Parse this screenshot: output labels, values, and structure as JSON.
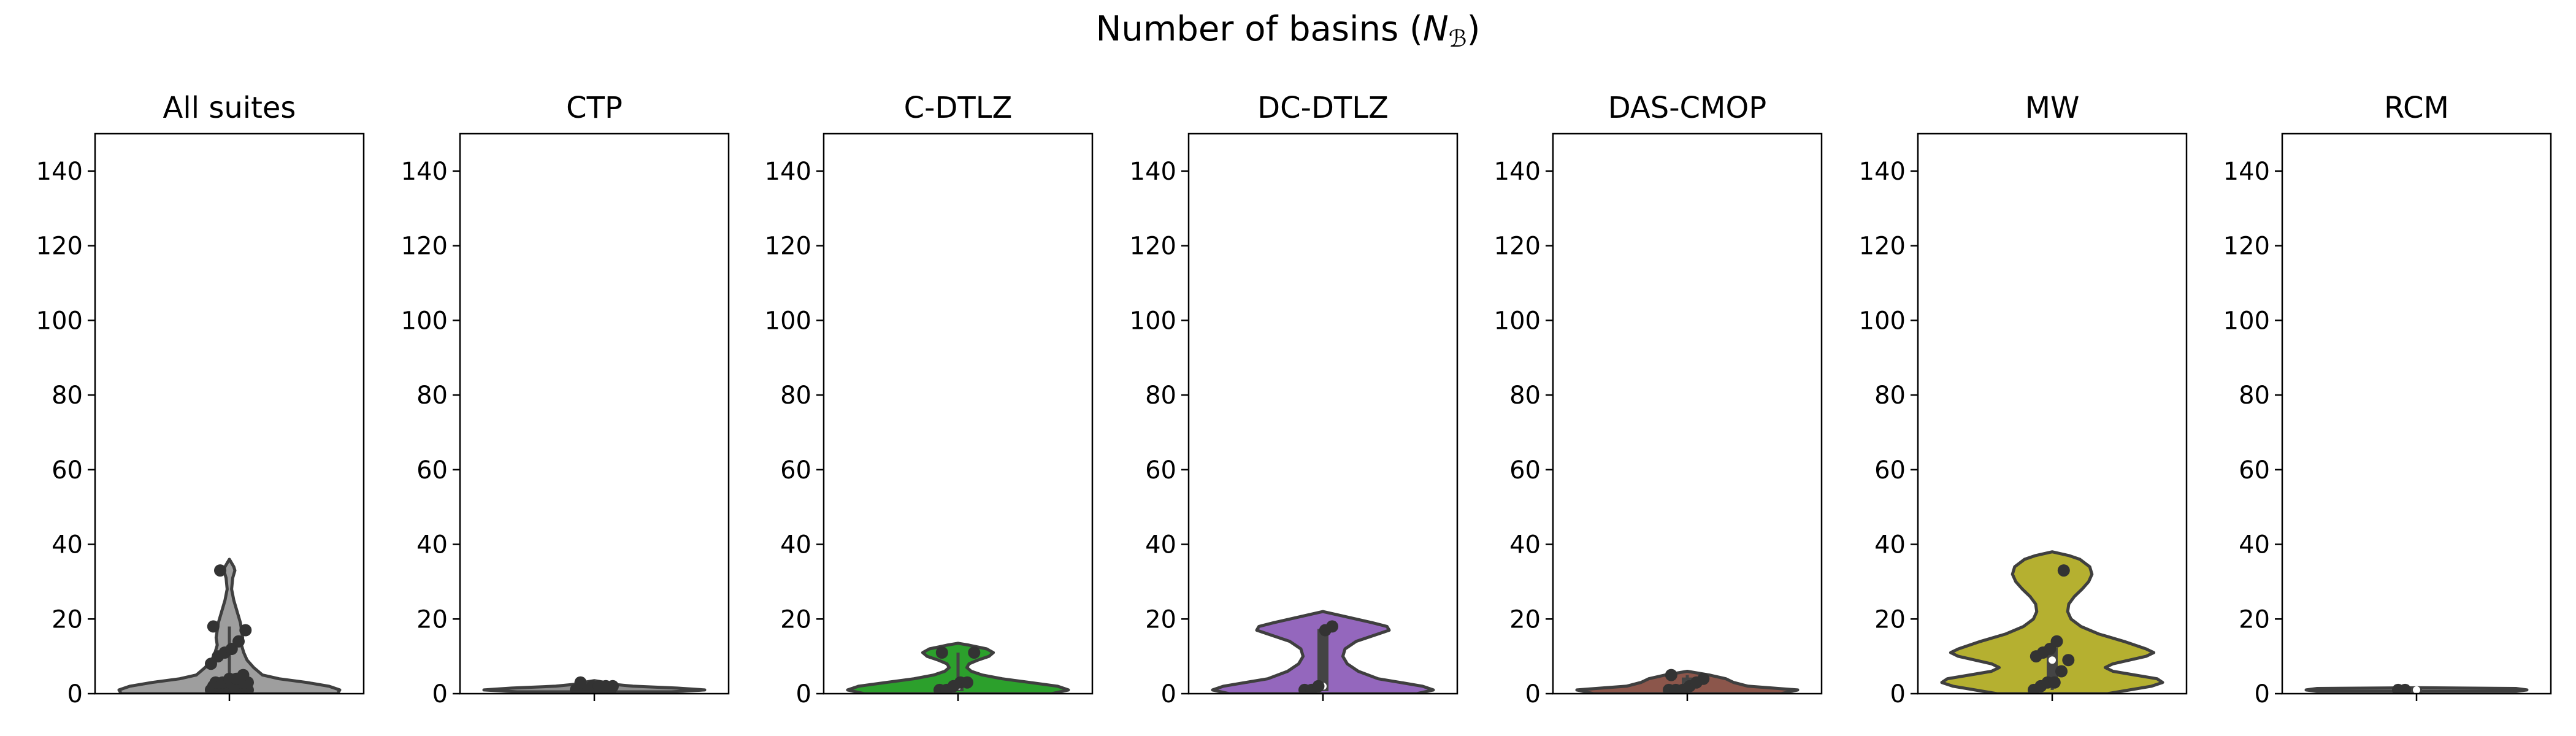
{
  "chart_data": {
    "type": "violin",
    "title": "Number of basins (N_B)",
    "title_base": "Number of basins (",
    "title_symbol": "N",
    "title_subscript": "ℬ",
    "title_close": ")",
    "ylim": [
      0,
      150
    ],
    "yticks": [
      0,
      20,
      40,
      60,
      80,
      100,
      120,
      140
    ],
    "grid": false,
    "panels": [
      {
        "name": "All suites",
        "color": "#9e9e9e",
        "density": [
          [
            0,
            0.98
          ],
          [
            1,
            1.0
          ],
          [
            2,
            0.9
          ],
          [
            3,
            0.7
          ],
          [
            4,
            0.45
          ],
          [
            5,
            0.3
          ],
          [
            7,
            0.22
          ],
          [
            9,
            0.16
          ],
          [
            11,
            0.13
          ],
          [
            13,
            0.11
          ],
          [
            15,
            0.12
          ],
          [
            17,
            0.11
          ],
          [
            19,
            0.1
          ],
          [
            21,
            0.08
          ],
          [
            23,
            0.06
          ],
          [
            25,
            0.04
          ],
          [
            28,
            0.02
          ],
          [
            31,
            0.03
          ],
          [
            33,
            0.05
          ],
          [
            34,
            0.04
          ],
          [
            35,
            0.02
          ],
          [
            36,
            0
          ]
        ],
        "points": [
          1,
          1,
          1,
          1,
          1,
          1,
          1,
          1,
          1,
          1,
          1,
          1,
          1,
          1,
          1,
          1,
          1,
          1,
          1,
          1,
          2,
          2,
          2,
          2,
          2,
          2,
          2,
          3,
          3,
          3,
          3,
          4,
          4,
          5,
          8,
          10,
          11,
          12,
          14,
          17,
          18,
          33
        ],
        "box": {
          "q1": 1,
          "median": 1,
          "q3": 3,
          "whisker_low": 1,
          "whisker_high": 18
        }
      },
      {
        "name": "CTP",
        "color": "#8c8c8c",
        "density": [
          [
            0.5,
            0.7
          ],
          [
            1,
            1.0
          ],
          [
            1.5,
            0.75
          ],
          [
            2,
            0.35
          ],
          [
            2.5,
            0.18
          ],
          [
            3,
            0.1
          ],
          [
            3.5,
            0
          ]
        ],
        "points": [
          1,
          1,
          1,
          1,
          1,
          1,
          1,
          1,
          2,
          2,
          2,
          2,
          3
        ],
        "box": {
          "q1": 1,
          "median": 1,
          "q3": 2,
          "whisker_low": 1,
          "whisker_high": 3
        }
      },
      {
        "name": "C-DTLZ",
        "color": "#2ca02c",
        "density": [
          [
            0,
            0.85
          ],
          [
            1,
            1.0
          ],
          [
            2,
            0.9
          ],
          [
            3,
            0.65
          ],
          [
            4,
            0.4
          ],
          [
            5,
            0.22
          ],
          [
            6,
            0.12
          ],
          [
            7,
            0.08
          ],
          [
            8,
            0.1
          ],
          [
            9,
            0.18
          ],
          [
            10,
            0.28
          ],
          [
            11,
            0.32
          ],
          [
            12,
            0.26
          ],
          [
            13,
            0.1
          ],
          [
            13.5,
            0
          ]
        ],
        "points": [
          1,
          1,
          2,
          3,
          3,
          11,
          11
        ],
        "box": {
          "q1": 1,
          "median": 2,
          "q3": 3,
          "whisker_low": 1,
          "whisker_high": 11
        }
      },
      {
        "name": "DC-DTLZ",
        "color": "#9467bd",
        "density": [
          [
            0,
            0.85
          ],
          [
            1,
            1.0
          ],
          [
            2,
            0.9
          ],
          [
            3,
            0.7
          ],
          [
            4,
            0.5
          ],
          [
            6,
            0.32
          ],
          [
            8,
            0.22
          ],
          [
            10,
            0.18
          ],
          [
            12,
            0.2
          ],
          [
            14,
            0.3
          ],
          [
            16,
            0.5
          ],
          [
            17,
            0.6
          ],
          [
            18,
            0.58
          ],
          [
            19,
            0.45
          ],
          [
            20,
            0.3
          ],
          [
            21,
            0.15
          ],
          [
            22,
            0
          ]
        ],
        "points": [
          1,
          1,
          2,
          17,
          18
        ],
        "box": {
          "q1": 1,
          "median": 2,
          "q3": 17,
          "whisker_low": 1,
          "whisker_high": 18
        }
      },
      {
        "name": "DAS-CMOP",
        "color": "#8c564b",
        "density": [
          [
            0,
            0.85
          ],
          [
            1,
            1.0
          ],
          [
            2,
            0.55
          ],
          [
            3,
            0.42
          ],
          [
            4,
            0.35
          ],
          [
            5,
            0.2
          ],
          [
            6,
            0
          ]
        ],
        "points": [
          1,
          1,
          1,
          2,
          3,
          4,
          5
        ],
        "box": {
          "q1": 1,
          "median": 2,
          "q3": 4,
          "whisker_low": 1,
          "whisker_high": 5
        }
      },
      {
        "name": "MW",
        "color": "#b5b030",
        "density": [
          [
            0,
            0.5
          ],
          [
            1,
            0.7
          ],
          [
            2,
            0.9
          ],
          [
            3,
            1.0
          ],
          [
            4,
            0.95
          ],
          [
            5,
            0.75
          ],
          [
            6,
            0.55
          ],
          [
            7,
            0.48
          ],
          [
            8,
            0.55
          ],
          [
            9,
            0.7
          ],
          [
            10,
            0.85
          ],
          [
            11,
            0.92
          ],
          [
            12,
            0.85
          ],
          [
            14,
            0.65
          ],
          [
            16,
            0.42
          ],
          [
            18,
            0.26
          ],
          [
            20,
            0.17
          ],
          [
            22,
            0.14
          ],
          [
            24,
            0.15
          ],
          [
            26,
            0.2
          ],
          [
            28,
            0.27
          ],
          [
            30,
            0.33
          ],
          [
            32,
            0.36
          ],
          [
            34,
            0.34
          ],
          [
            36,
            0.25
          ],
          [
            37,
            0.15
          ],
          [
            38,
            0
          ]
        ],
        "points": [
          1,
          2,
          3,
          3,
          6,
          9,
          10,
          11,
          12,
          14,
          33
        ],
        "box": {
          "q1": 3,
          "median": 9,
          "q3": 12,
          "whisker_low": 1,
          "whisker_high": 14
        }
      },
      {
        "name": "RCM",
        "color": "#7f7f7f",
        "density": [
          [
            0.6,
            0.9
          ],
          [
            1,
            1.0
          ],
          [
            1.4,
            0.9
          ],
          [
            1.6,
            0
          ]
        ],
        "points": [
          1,
          1
        ],
        "box": {
          "q1": 1,
          "median": 1,
          "q3": 1,
          "whisker_low": 1,
          "whisker_high": 1
        }
      }
    ]
  }
}
